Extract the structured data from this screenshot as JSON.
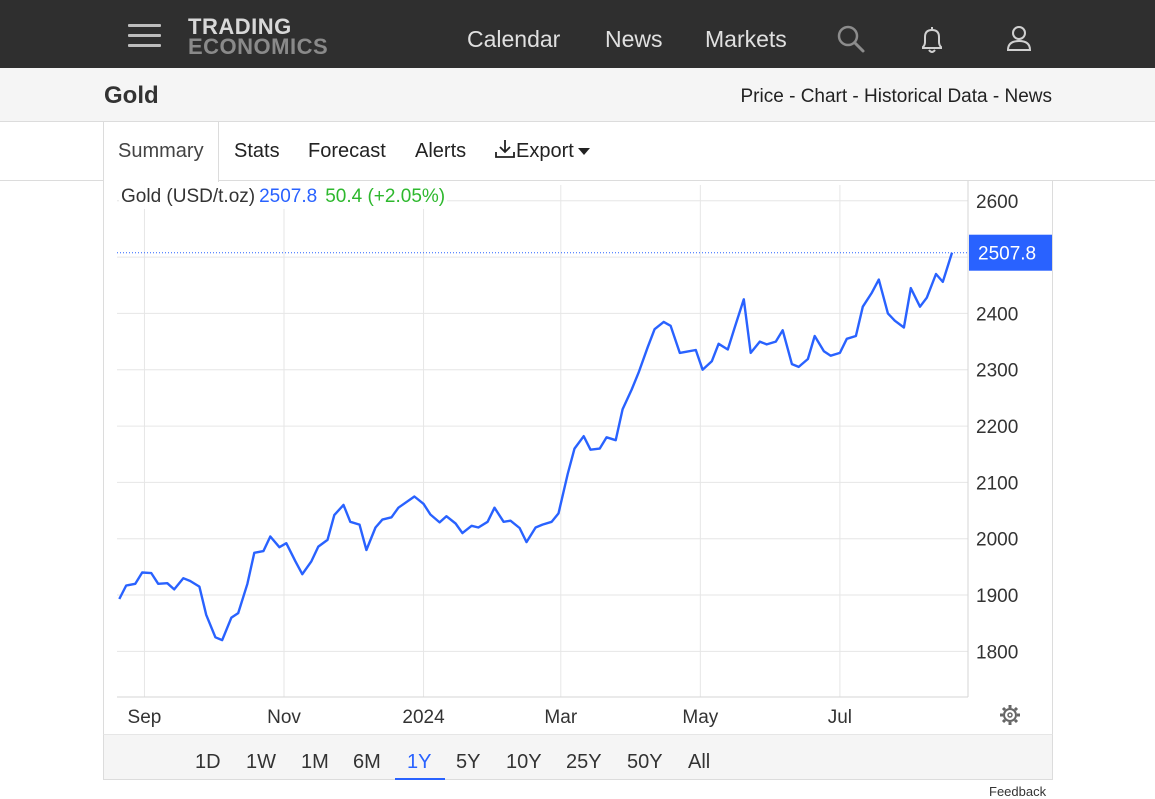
{
  "header": {
    "logo_line1": "TRADING",
    "logo_line2": "ECONOMICS",
    "nav": [
      "Calendar",
      "News",
      "Markets"
    ]
  },
  "subheader": {
    "title": "Gold",
    "links": [
      "Price",
      "Chart",
      "Historical Data",
      "News"
    ],
    "separator": " - "
  },
  "tabs": {
    "summary": "Summary",
    "stats": "Stats",
    "forecast": "Forecast",
    "alerts": "Alerts",
    "export": "Export"
  },
  "legend": {
    "name": "Gold (USD/t.oz)",
    "price": "2507.8",
    "change": "50.4 (+2.05%)"
  },
  "ranges": [
    "1D",
    "1W",
    "1M",
    "6M",
    "1Y",
    "5Y",
    "10Y",
    "25Y",
    "50Y",
    "All"
  ],
  "active_range": "1Y",
  "feedback": "Feedback",
  "colors": {
    "line": "#2962ff",
    "change": "#2eb82e",
    "header_bg": "#2f2f2f"
  },
  "icons": [
    "hamburger-icon",
    "search-icon",
    "bell-icon",
    "user-icon",
    "download-icon",
    "gear-icon"
  ],
  "chart_data": {
    "type": "line",
    "series": [
      {
        "name": "Gold (USD/t.oz)",
        "values": [
          [
            "2023-08-21",
            1893
          ],
          [
            "2023-08-24",
            1917
          ],
          [
            "2023-08-28",
            1920
          ],
          [
            "2023-08-31",
            1940
          ],
          [
            "2023-09-04",
            1939
          ],
          [
            "2023-09-07",
            1920
          ],
          [
            "2023-09-11",
            1921
          ],
          [
            "2023-09-14",
            1910
          ],
          [
            "2023-09-18",
            1930
          ],
          [
            "2023-09-21",
            1925
          ],
          [
            "2023-09-25",
            1915
          ],
          [
            "2023-09-28",
            1865
          ],
          [
            "2023-10-02",
            1825
          ],
          [
            "2023-10-05",
            1820
          ],
          [
            "2023-10-09",
            1860
          ],
          [
            "2023-10-12",
            1868
          ],
          [
            "2023-10-16",
            1920
          ],
          [
            "2023-10-19",
            1975
          ],
          [
            "2023-10-23",
            1978
          ],
          [
            "2023-10-26",
            2004
          ],
          [
            "2023-10-30",
            1985
          ],
          [
            "2023-11-02",
            1992
          ],
          [
            "2023-11-06",
            1960
          ],
          [
            "2023-11-09",
            1937
          ],
          [
            "2023-11-13",
            1960
          ],
          [
            "2023-11-16",
            1986
          ],
          [
            "2023-11-20",
            1998
          ],
          [
            "2023-11-23",
            2042
          ],
          [
            "2023-11-27",
            2060
          ],
          [
            "2023-11-30",
            2030
          ],
          [
            "2023-12-04",
            2025
          ],
          [
            "2023-12-07",
            1980
          ],
          [
            "2023-12-11",
            2020
          ],
          [
            "2023-12-14",
            2034
          ],
          [
            "2023-12-18",
            2038
          ],
          [
            "2023-12-21",
            2055
          ],
          [
            "2023-12-28",
            2075
          ],
          [
            "2024-01-01",
            2062
          ],
          [
            "2024-01-04",
            2043
          ],
          [
            "2024-01-08",
            2029
          ],
          [
            "2024-01-11",
            2040
          ],
          [
            "2024-01-15",
            2027
          ],
          [
            "2024-01-18",
            2010
          ],
          [
            "2024-01-22",
            2023
          ],
          [
            "2024-01-25",
            2020
          ],
          [
            "2024-01-29",
            2030
          ],
          [
            "2024-02-01",
            2055
          ],
          [
            "2024-02-05",
            2030
          ],
          [
            "2024-02-08",
            2032
          ],
          [
            "2024-02-12",
            2019
          ],
          [
            "2024-02-15",
            1994
          ],
          [
            "2024-02-19",
            2020
          ],
          [
            "2024-02-22",
            2025
          ],
          [
            "2024-02-26",
            2030
          ],
          [
            "2024-02-29",
            2045
          ],
          [
            "2024-03-04",
            2115
          ],
          [
            "2024-03-07",
            2160
          ],
          [
            "2024-03-11",
            2182
          ],
          [
            "2024-03-14",
            2158
          ],
          [
            "2024-03-18",
            2160
          ],
          [
            "2024-03-21",
            2180
          ],
          [
            "2024-03-25",
            2175
          ],
          [
            "2024-03-28",
            2230
          ],
          [
            "2024-04-01",
            2265
          ],
          [
            "2024-04-04",
            2295
          ],
          [
            "2024-04-08",
            2340
          ],
          [
            "2024-04-11",
            2372
          ],
          [
            "2024-04-15",
            2385
          ],
          [
            "2024-04-18",
            2378
          ],
          [
            "2024-04-22",
            2330
          ],
          [
            "2024-04-25",
            2332
          ],
          [
            "2024-04-29",
            2335
          ],
          [
            "2024-05-02",
            2300
          ],
          [
            "2024-05-06",
            2315
          ],
          [
            "2024-05-09",
            2346
          ],
          [
            "2024-05-13",
            2336
          ],
          [
            "2024-05-16",
            2375
          ],
          [
            "2024-05-20",
            2425
          ],
          [
            "2024-05-23",
            2330
          ],
          [
            "2024-05-27",
            2350
          ],
          [
            "2024-05-30",
            2345
          ],
          [
            "2024-06-03",
            2350
          ],
          [
            "2024-06-06",
            2370
          ],
          [
            "2024-06-10",
            2310
          ],
          [
            "2024-06-13",
            2305
          ],
          [
            "2024-06-17",
            2319
          ],
          [
            "2024-06-20",
            2360
          ],
          [
            "2024-06-24",
            2333
          ],
          [
            "2024-06-27",
            2325
          ],
          [
            "2024-07-01",
            2330
          ],
          [
            "2024-07-04",
            2355
          ],
          [
            "2024-07-08",
            2360
          ],
          [
            "2024-07-11",
            2412
          ],
          [
            "2024-07-15",
            2437
          ],
          [
            "2024-07-18",
            2460
          ],
          [
            "2024-07-22",
            2400
          ],
          [
            "2024-07-25",
            2387
          ],
          [
            "2024-07-29",
            2375
          ],
          [
            "2024-08-01",
            2445
          ],
          [
            "2024-08-05",
            2412
          ],
          [
            "2024-08-08",
            2428
          ],
          [
            "2024-08-12",
            2470
          ],
          [
            "2024-08-15",
            2456
          ],
          [
            "2024-08-19",
            2507.8
          ]
        ]
      }
    ],
    "x_ticks": [
      {
        "label": "Sep",
        "date": "2023-09-01"
      },
      {
        "label": "Nov",
        "date": "2023-11-01"
      },
      {
        "label": "2024",
        "date": "2024-01-01"
      },
      {
        "label": "Mar",
        "date": "2024-03-01"
      },
      {
        "label": "May",
        "date": "2024-05-01"
      },
      {
        "label": "Jul",
        "date": "2024-07-01"
      }
    ],
    "y_ticks": [
      1800,
      1900,
      2000,
      2100,
      2200,
      2300,
      2400,
      2600
    ],
    "ylim": [
      1719,
      2628
    ],
    "xlim": [
      "2023-08-20",
      "2024-08-26"
    ],
    "last_value": 2507.8,
    "grid": true
  }
}
